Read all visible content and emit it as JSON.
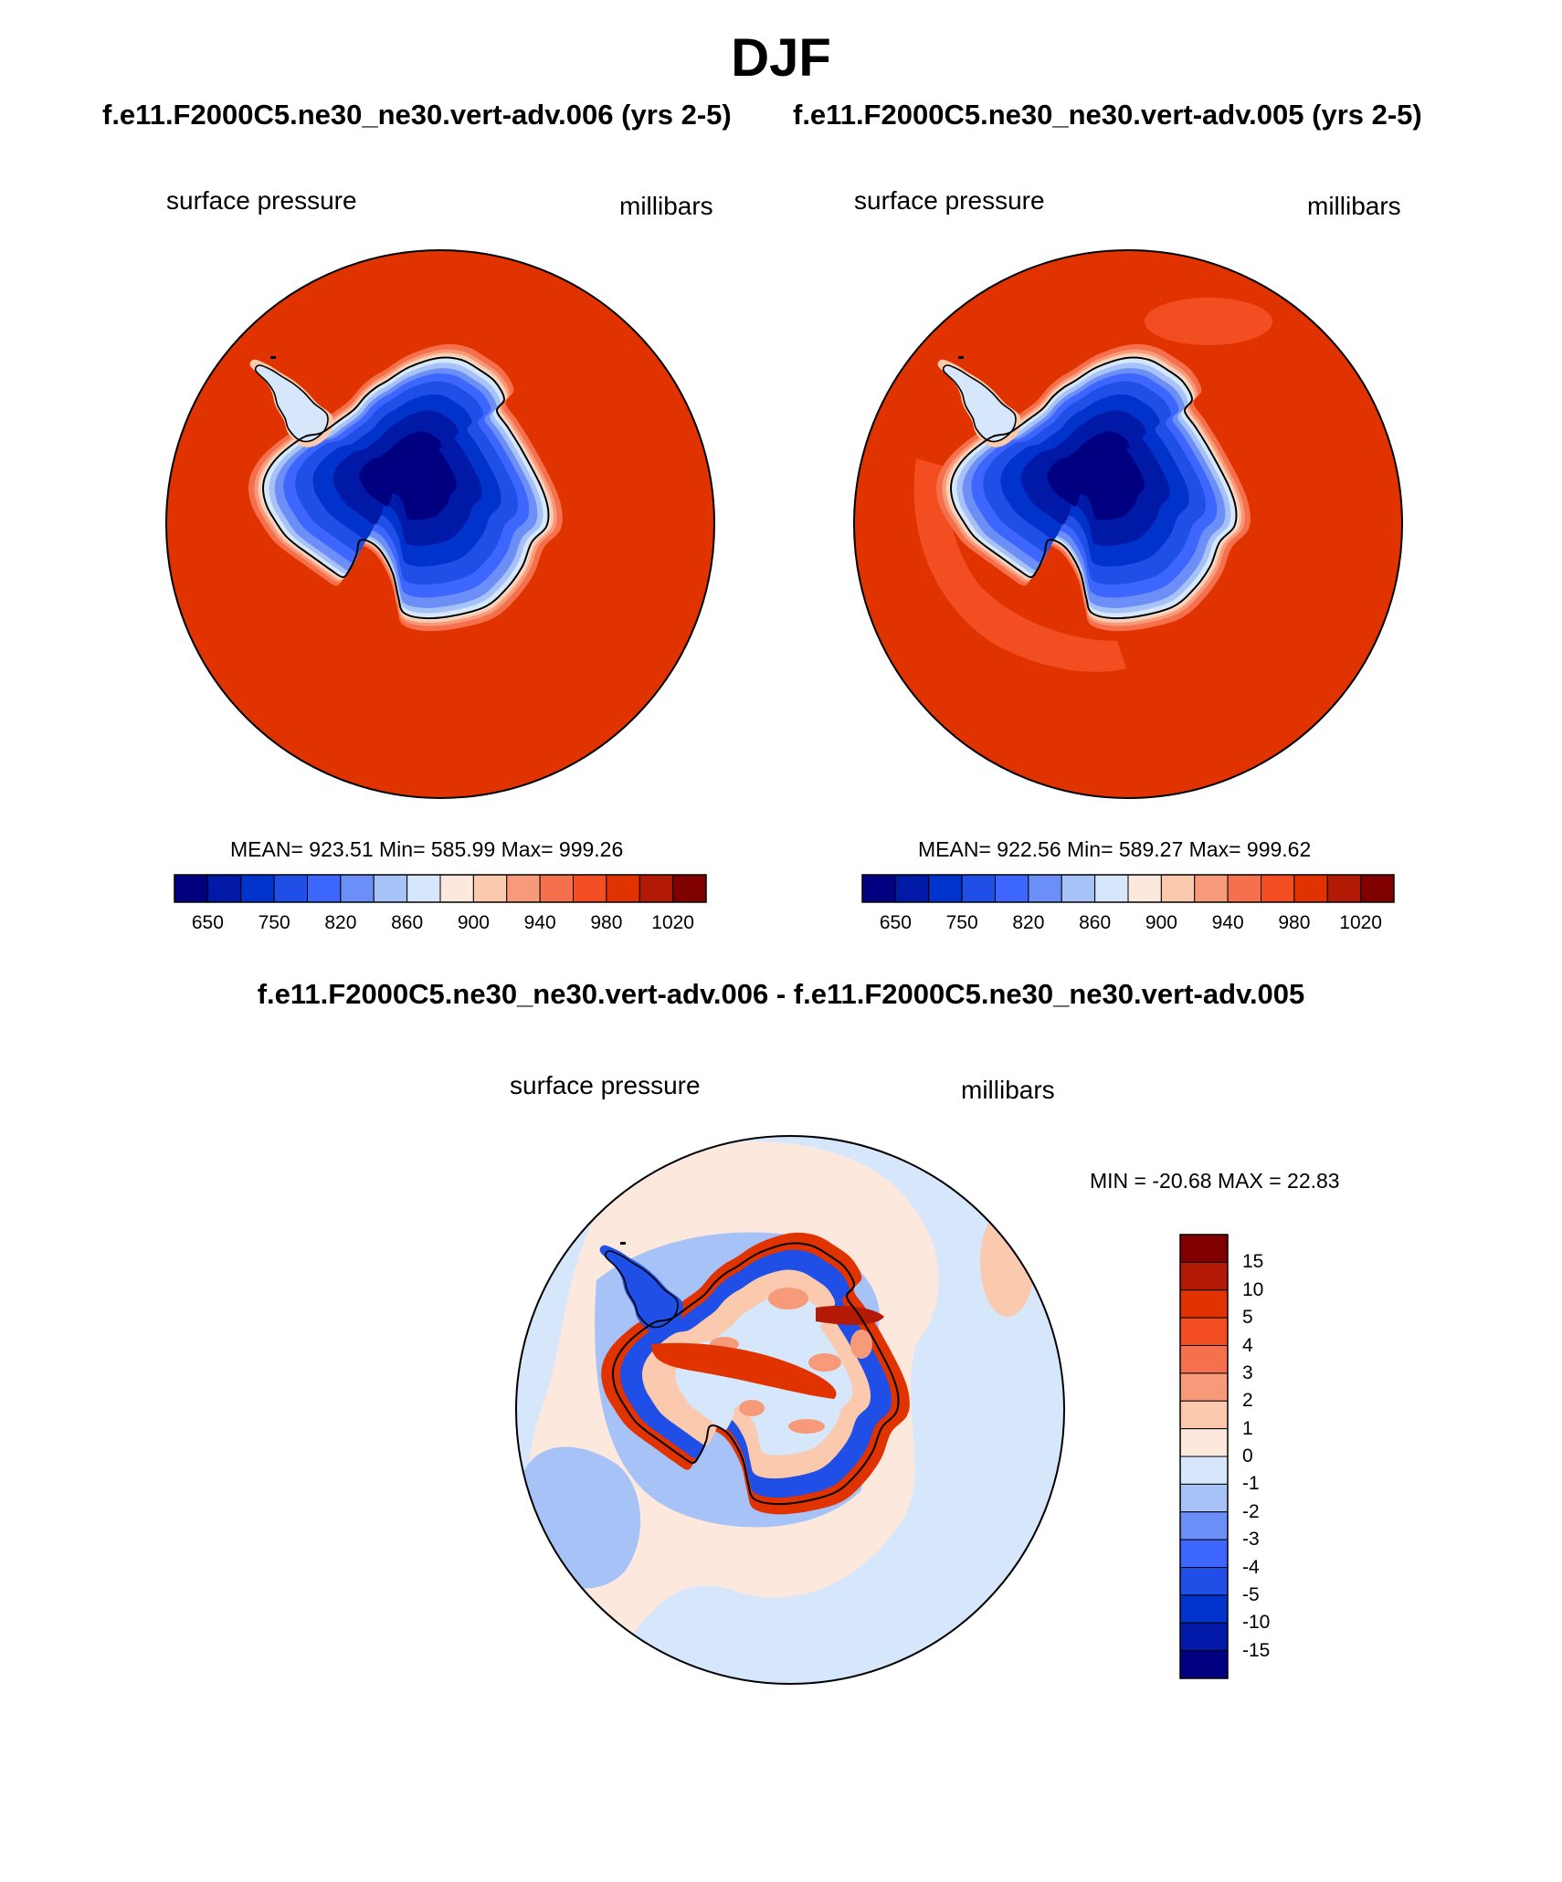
{
  "title": "DJF",
  "panels": [
    {
      "case_title": "f.e11.F2000C5.ne30_ne30.vert-adv.006 (yrs 2-5)",
      "variable": "surface pressure",
      "units": "millibars",
      "stats": "MEAN= 923.51  Min= 585.99  Max= 999.26",
      "variant": "a"
    },
    {
      "case_title": "f.e11.F2000C5.ne30_ne30.vert-adv.005 (yrs 2-5)",
      "variable": "surface pressure",
      "units": "millibars",
      "stats": "MEAN= 922.56  Min= 589.27  Max= 999.62",
      "variant": "b"
    }
  ],
  "diff": {
    "title": "f.e11.F2000C5.ne30_ne30.vert-adv.006 - f.e11.F2000C5.ne30_ne30.vert-adv.005",
    "variable": "surface pressure",
    "units": "millibars",
    "stats": "MIN = -20.68 MAX =  22.83"
  },
  "colorbar_abs": {
    "colors": [
      "#000080",
      "#0019a6",
      "#0033cc",
      "#1f4fe6",
      "#3d66ff",
      "#6b8ef7",
      "#a6c2f7",
      "#d6e6fb",
      "#fce8dc",
      "#fbc9ad",
      "#f79a7a",
      "#f5714d",
      "#f24e21",
      "#e13300",
      "#b31a05",
      "#800000"
    ],
    "tick_labels": [
      "650",
      "750",
      "820",
      "860",
      "900",
      "940",
      "980",
      "1020"
    ]
  },
  "colorbar_diff": {
    "colors_top_to_bottom": [
      "#800000",
      "#b31a05",
      "#e13300",
      "#f24e21",
      "#f5714d",
      "#f79a7a",
      "#fbc9ad",
      "#fce8dc",
      "#d6e6fb",
      "#a6c2f7",
      "#6b8ef7",
      "#3d66ff",
      "#1f4fe6",
      "#0033cc",
      "#0019a6",
      "#000080"
    ],
    "tick_labels": [
      "15",
      "10",
      "5",
      "4",
      "3",
      "2",
      "1",
      "0",
      "-1",
      "-2",
      "-3",
      "-4",
      "-5",
      "-10",
      "-15"
    ]
  },
  "map_colors": {
    "ocean": "#e13300",
    "ocean_b_light": "#f24e21",
    "diff_pos_light": "#fce8dc",
    "diff_neg_light": "#d6e6fb",
    "diff_pos_mid": "#f79a7a",
    "diff_pos_strong": "#e13300",
    "diff_neg_strong": "#1f4fe6"
  }
}
